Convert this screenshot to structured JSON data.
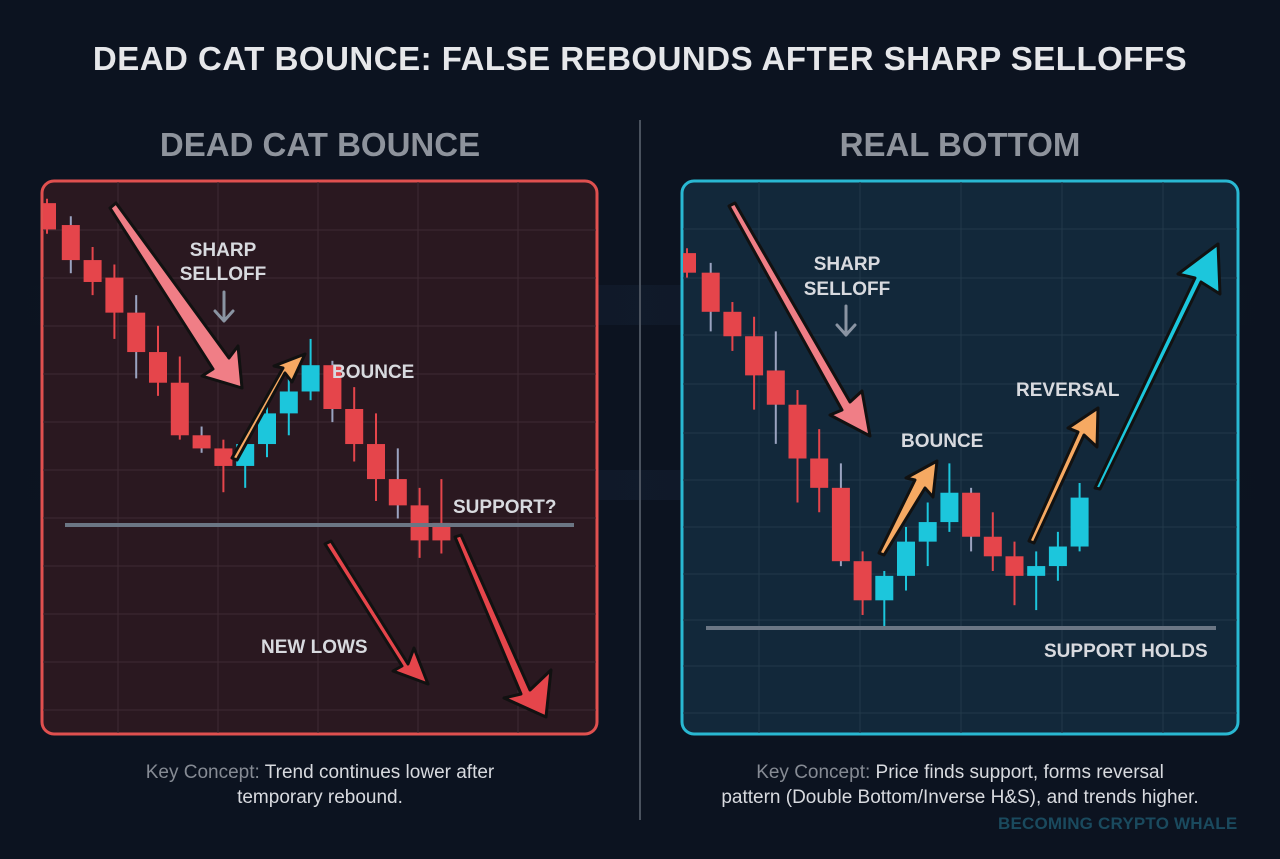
{
  "title": "DEAD CAT BOUNCE: FALSE REBOUNDS AFTER SHARP SELLOFFS",
  "colors": {
    "background": "#0c1320",
    "bearish_candle": "#e5454b",
    "bullish_candle": "#1cc6dc",
    "left_border": "#e0504f",
    "left_fill": "#2a1820",
    "right_border": "#29b8d2",
    "right_fill": "#12283a",
    "support_line": "#6b7684",
    "selloff_arrow": "#f07e86",
    "bounce_arrow": "#f6a962",
    "down_arrow": "#e5454b",
    "up_arrow": "#1cc6dc"
  },
  "panels": {
    "left": {
      "heading": "DEAD CAT BOUNCE",
      "annotations": {
        "selloff_line1": "SHARP",
        "selloff_line2": "SELLOFF",
        "bounce": "BOUNCE",
        "support": "SUPPORT?",
        "new_lows": "NEW LOWS"
      },
      "caption": {
        "label": "Key Concept:",
        "line1": " Trend continues lower after",
        "line2": "temporary rebound."
      }
    },
    "right": {
      "heading": "REAL BOTTOM",
      "annotations": {
        "selloff_line1": "SHARP",
        "selloff_line2": "SELLOFF",
        "bounce": "BOUNCE",
        "reversal": "REVERSAL",
        "support": "SUPPORT HOLDS"
      },
      "caption": {
        "label": "Key Concept:",
        "line1": " Price finds support, forms reversal",
        "line2": "pattern (Double Bottom/Inverse H&S), and trends higher."
      }
    }
  },
  "watermark": "BECOMING CRYPTO WHALE",
  "chart_data": [
    {
      "type": "candlestick",
      "title": "DEAD CAT BOUNCE",
      "note": "Values are relative price levels read from pixel positions (higher = higher price, scale 0-100); no axis ticks shown",
      "grid": true,
      "support_level": 38,
      "candles": [
        {
          "x": 1,
          "open": 97,
          "close": 91,
          "high": 98,
          "low": 90,
          "dir": "down"
        },
        {
          "x": 2,
          "open": 92,
          "close": 84,
          "high": 94,
          "low": 81,
          "dir": "down"
        },
        {
          "x": 3,
          "open": 84,
          "close": 79,
          "high": 87,
          "low": 76,
          "dir": "down"
        },
        {
          "x": 4,
          "open": 80,
          "close": 72,
          "high": 83,
          "low": 66,
          "dir": "down"
        },
        {
          "x": 5,
          "open": 72,
          "close": 63,
          "high": 76,
          "low": 57,
          "dir": "down"
        },
        {
          "x": 6,
          "open": 63,
          "close": 56,
          "high": 69,
          "low": 53,
          "dir": "down"
        },
        {
          "x": 7,
          "open": 56,
          "close": 44,
          "high": 62,
          "low": 43,
          "dir": "down"
        },
        {
          "x": 8,
          "open": 44,
          "close": 41,
          "high": 46,
          "low": 40,
          "dir": "down"
        },
        {
          "x": 9,
          "open": 41,
          "close": 37,
          "high": 43,
          "low": 31,
          "dir": "down"
        },
        {
          "x": 10,
          "open": 37,
          "close": 42,
          "high": 44,
          "low": 32,
          "dir": "up"
        },
        {
          "x": 11,
          "open": 42,
          "close": 49,
          "high": 52,
          "low": 39,
          "dir": "up"
        },
        {
          "x": 12,
          "open": 49,
          "close": 54,
          "high": 57,
          "low": 44,
          "dir": "up"
        },
        {
          "x": 13,
          "open": 54,
          "close": 60,
          "high": 66,
          "low": 52,
          "dir": "up"
        },
        {
          "x": 14,
          "open": 60,
          "close": 50,
          "high": 61,
          "low": 47,
          "dir": "down"
        },
        {
          "x": 15,
          "open": 50,
          "close": 42,
          "high": 55,
          "low": 38,
          "dir": "down"
        },
        {
          "x": 16,
          "open": 42,
          "close": 34,
          "high": 49,
          "low": 29,
          "dir": "down"
        },
        {
          "x": 17,
          "open": 34,
          "close": 28,
          "high": 41,
          "low": 25,
          "dir": "down"
        },
        {
          "x": 18,
          "open": 28,
          "close": 20,
          "high": 32,
          "low": 16,
          "dir": "down"
        },
        {
          "x": 19,
          "open": 24,
          "close": 20,
          "high": 34,
          "low": 17,
          "dir": "down"
        }
      ],
      "annotations": [
        "SHARP SELLOFF",
        "BOUNCE",
        "SUPPORT?",
        "NEW LOWS"
      ]
    },
    {
      "type": "candlestick",
      "title": "REAL BOTTOM",
      "note": "Values are relative price levels read from pixel positions (higher = higher price, scale 0-100); no axis ticks shown",
      "grid": true,
      "support_level": 19,
      "candles": [
        {
          "x": 1,
          "open": 92,
          "close": 88,
          "high": 93,
          "low": 87,
          "dir": "down"
        },
        {
          "x": 2,
          "open": 88,
          "close": 80,
          "high": 90,
          "low": 76,
          "dir": "down"
        },
        {
          "x": 3,
          "open": 80,
          "close": 75,
          "high": 82,
          "low": 72,
          "dir": "down"
        },
        {
          "x": 4,
          "open": 75,
          "close": 67,
          "high": 79,
          "low": 60,
          "dir": "down"
        },
        {
          "x": 5,
          "open": 68,
          "close": 61,
          "high": 76,
          "low": 53,
          "dir": "down"
        },
        {
          "x": 6,
          "open": 61,
          "close": 50,
          "high": 64,
          "low": 41,
          "dir": "down"
        },
        {
          "x": 7,
          "open": 50,
          "close": 44,
          "high": 56,
          "low": 39,
          "dir": "down"
        },
        {
          "x": 8,
          "open": 44,
          "close": 29,
          "high": 49,
          "low": 28,
          "dir": "down"
        },
        {
          "x": 9,
          "open": 29,
          "close": 21,
          "high": 31,
          "low": 18,
          "dir": "down"
        },
        {
          "x": 10,
          "open": 21,
          "close": 26,
          "high": 27,
          "low": 15,
          "dir": "up"
        },
        {
          "x": 11,
          "open": 26,
          "close": 33,
          "high": 36,
          "low": 23,
          "dir": "up"
        },
        {
          "x": 12,
          "open": 33,
          "close": 37,
          "high": 41,
          "low": 28,
          "dir": "up"
        },
        {
          "x": 13,
          "open": 37,
          "close": 43,
          "high": 49,
          "low": 35,
          "dir": "up"
        },
        {
          "x": 14,
          "open": 43,
          "close": 34,
          "high": 44,
          "low": 31,
          "dir": "down"
        },
        {
          "x": 15,
          "open": 34,
          "close": 30,
          "high": 39,
          "low": 27,
          "dir": "down"
        },
        {
          "x": 16,
          "open": 30,
          "close": 26,
          "high": 33,
          "low": 20,
          "dir": "down"
        },
        {
          "x": 17,
          "open": 26,
          "close": 28,
          "high": 31,
          "low": 19,
          "dir": "up"
        },
        {
          "x": 18,
          "open": 28,
          "close": 32,
          "high": 35,
          "low": 25,
          "dir": "up"
        },
        {
          "x": 19,
          "open": 32,
          "close": 42,
          "high": 45,
          "low": 31,
          "dir": "up"
        }
      ],
      "annotations": [
        "SHARP SELLOFF",
        "BOUNCE",
        "REVERSAL",
        "SUPPORT HOLDS"
      ]
    }
  ]
}
